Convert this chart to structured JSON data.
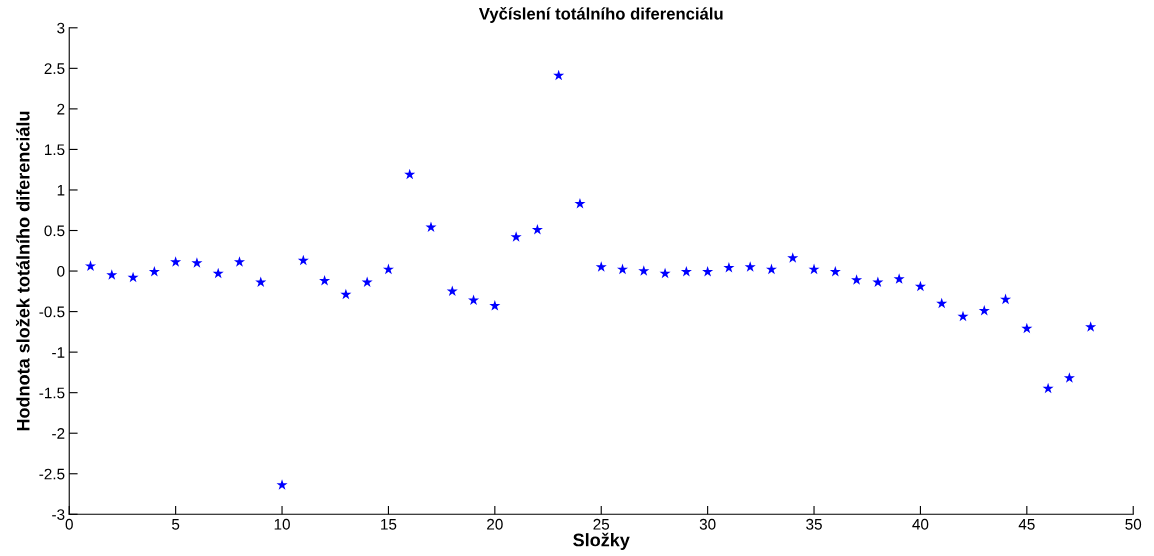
{
  "chart_data": {
    "type": "scatter",
    "title": "Vyčíslení totálního diferenciálu",
    "xlabel": "Složky",
    "ylabel": "Hodnota složek totálního diferenciálu",
    "x": [
      1,
      2,
      3,
      4,
      5,
      6,
      7,
      8,
      9,
      10,
      11,
      12,
      13,
      14,
      15,
      16,
      17,
      18,
      19,
      20,
      21,
      22,
      23,
      24,
      25,
      26,
      27,
      28,
      29,
      30,
      31,
      32,
      33,
      34,
      35,
      36,
      37,
      38,
      39,
      40,
      41,
      42,
      43,
      44,
      45,
      46,
      47,
      48
    ],
    "series": [
      {
        "color": "#0000ff",
        "values": [
          0.06,
          -0.05,
          -0.08,
          -0.01,
          0.11,
          0.1,
          -0.03,
          0.11,
          -0.14,
          -2.64,
          0.13,
          -0.12,
          -0.29,
          -0.14,
          0.02,
          1.19,
          0.54,
          -0.25,
          -0.36,
          -0.43,
          0.42,
          0.51,
          2.41,
          0.83,
          0.05,
          0.02,
          0.0,
          -0.03,
          -0.01,
          -0.01,
          0.04,
          0.05,
          0.02,
          0.16,
          0.02,
          -0.01,
          -0.11,
          -0.14,
          -0.1,
          -0.19,
          -0.4,
          -0.56,
          -0.49,
          -0.35,
          -0.71,
          -1.45,
          -1.32,
          -0.69
        ]
      }
    ],
    "xlim": [
      0,
      50
    ],
    "xticks": [
      0,
      5,
      10,
      15,
      20,
      25,
      30,
      35,
      40,
      45,
      50
    ],
    "ylim": [
      -3,
      3
    ],
    "yticks": [
      -3,
      -2.5,
      -2,
      -1.5,
      -1,
      -0.5,
      0,
      0.5,
      1,
      1.5,
      2,
      2.5,
      3
    ],
    "marker": "star",
    "grid": false,
    "legend": false
  }
}
